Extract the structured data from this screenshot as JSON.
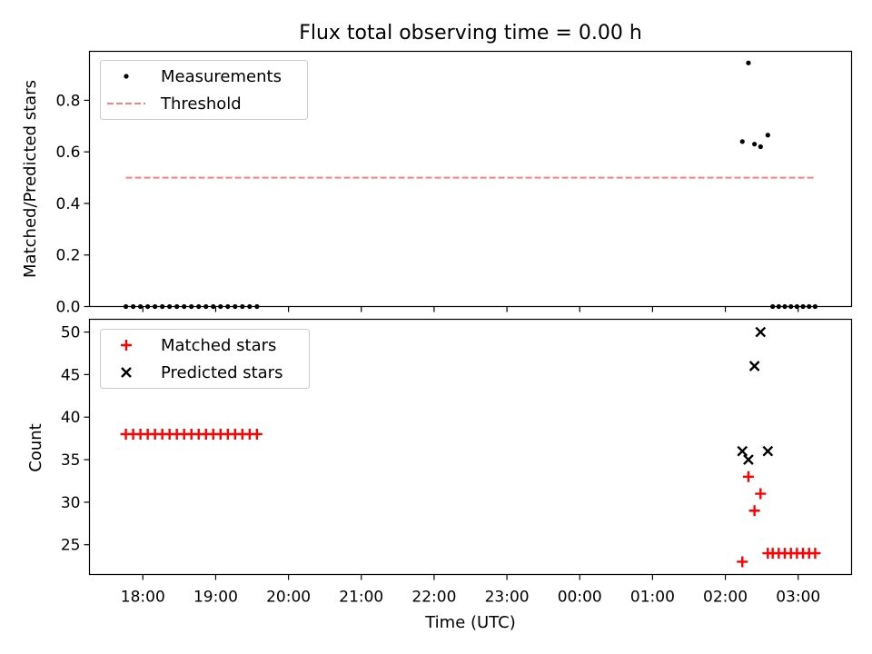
{
  "title": "Flux total observing time = 0.00 h",
  "x_axis": {
    "label": "Time (UTC)",
    "ticks": [
      "18:00",
      "19:00",
      "20:00",
      "21:00",
      "22:00",
      "23:00",
      "00:00",
      "01:00",
      "02:00",
      "03:00"
    ]
  },
  "chart_data": [
    {
      "type": "scatter",
      "ylabel": "Matched/Predicted stars",
      "ylim": [
        0,
        0.99
      ],
      "yticks": [
        "0.0",
        "0.2",
        "0.4",
        "0.6",
        "0.8"
      ],
      "xlim": [
        "17:16",
        "03:44"
      ],
      "legend": {
        "placement": "top-left"
      },
      "series": [
        {
          "name": "Measurements",
          "marker": "dot",
          "color": "#000000",
          "x": [
            "17:46",
            "17:52",
            "17:58",
            "18:04",
            "18:10",
            "18:16",
            "18:22",
            "18:28",
            "18:34",
            "18:40",
            "18:46",
            "18:52",
            "18:58",
            "19:04",
            "19:10",
            "19:16",
            "19:22",
            "19:28",
            "19:34",
            "02:14",
            "02:19",
            "02:24",
            "02:29",
            "02:35",
            "02:39",
            "02:44",
            "02:49",
            "02:54",
            "02:59",
            "03:04",
            "03:09",
            "03:14"
          ],
          "y": [
            0,
            0,
            0,
            0,
            0,
            0,
            0,
            0,
            0,
            0,
            0,
            0,
            0,
            0,
            0,
            0,
            0,
            0,
            0,
            0.64,
            0.945,
            0.63,
            0.62,
            0.665,
            0,
            0,
            0,
            0,
            0,
            0,
            0,
            0
          ]
        },
        {
          "name": "Threshold",
          "style": "dashed",
          "color": "#ff7f7f",
          "x": [
            "17:46",
            "03:14"
          ],
          "y": [
            0.5,
            0.5
          ]
        }
      ]
    },
    {
      "type": "scatter",
      "ylabel": "Count",
      "ylim": [
        21.5,
        51.5
      ],
      "yticks": [
        "25",
        "30",
        "35",
        "40",
        "45",
        "50"
      ],
      "xlim": [
        "17:16",
        "03:44"
      ],
      "legend": {
        "placement": "top-left"
      },
      "series": [
        {
          "name": "Matched stars",
          "marker": "plus",
          "color": "#ff0000",
          "x": [
            "17:46",
            "17:52",
            "17:58",
            "18:04",
            "18:10",
            "18:16",
            "18:22",
            "18:28",
            "18:34",
            "18:40",
            "18:46",
            "18:52",
            "18:58",
            "19:04",
            "19:10",
            "19:16",
            "19:22",
            "19:28",
            "19:34",
            "02:14",
            "02:19",
            "02:24",
            "02:29",
            "02:35",
            "02:39",
            "02:44",
            "02:49",
            "02:54",
            "02:59",
            "03:04",
            "03:09",
            "03:14"
          ],
          "y": [
            38,
            38,
            38,
            38,
            38,
            38,
            38,
            38,
            38,
            38,
            38,
            38,
            38,
            38,
            38,
            38,
            38,
            38,
            38,
            23,
            33,
            29,
            31,
            24,
            24,
            24,
            24,
            24,
            24,
            24,
            24,
            24
          ]
        },
        {
          "name": "Predicted stars",
          "marker": "x",
          "color": "#000000",
          "x": [
            "02:14",
            "02:19",
            "02:24",
            "02:29",
            "02:35"
          ],
          "y": [
            36,
            35,
            46,
            50,
            36
          ]
        }
      ]
    }
  ]
}
